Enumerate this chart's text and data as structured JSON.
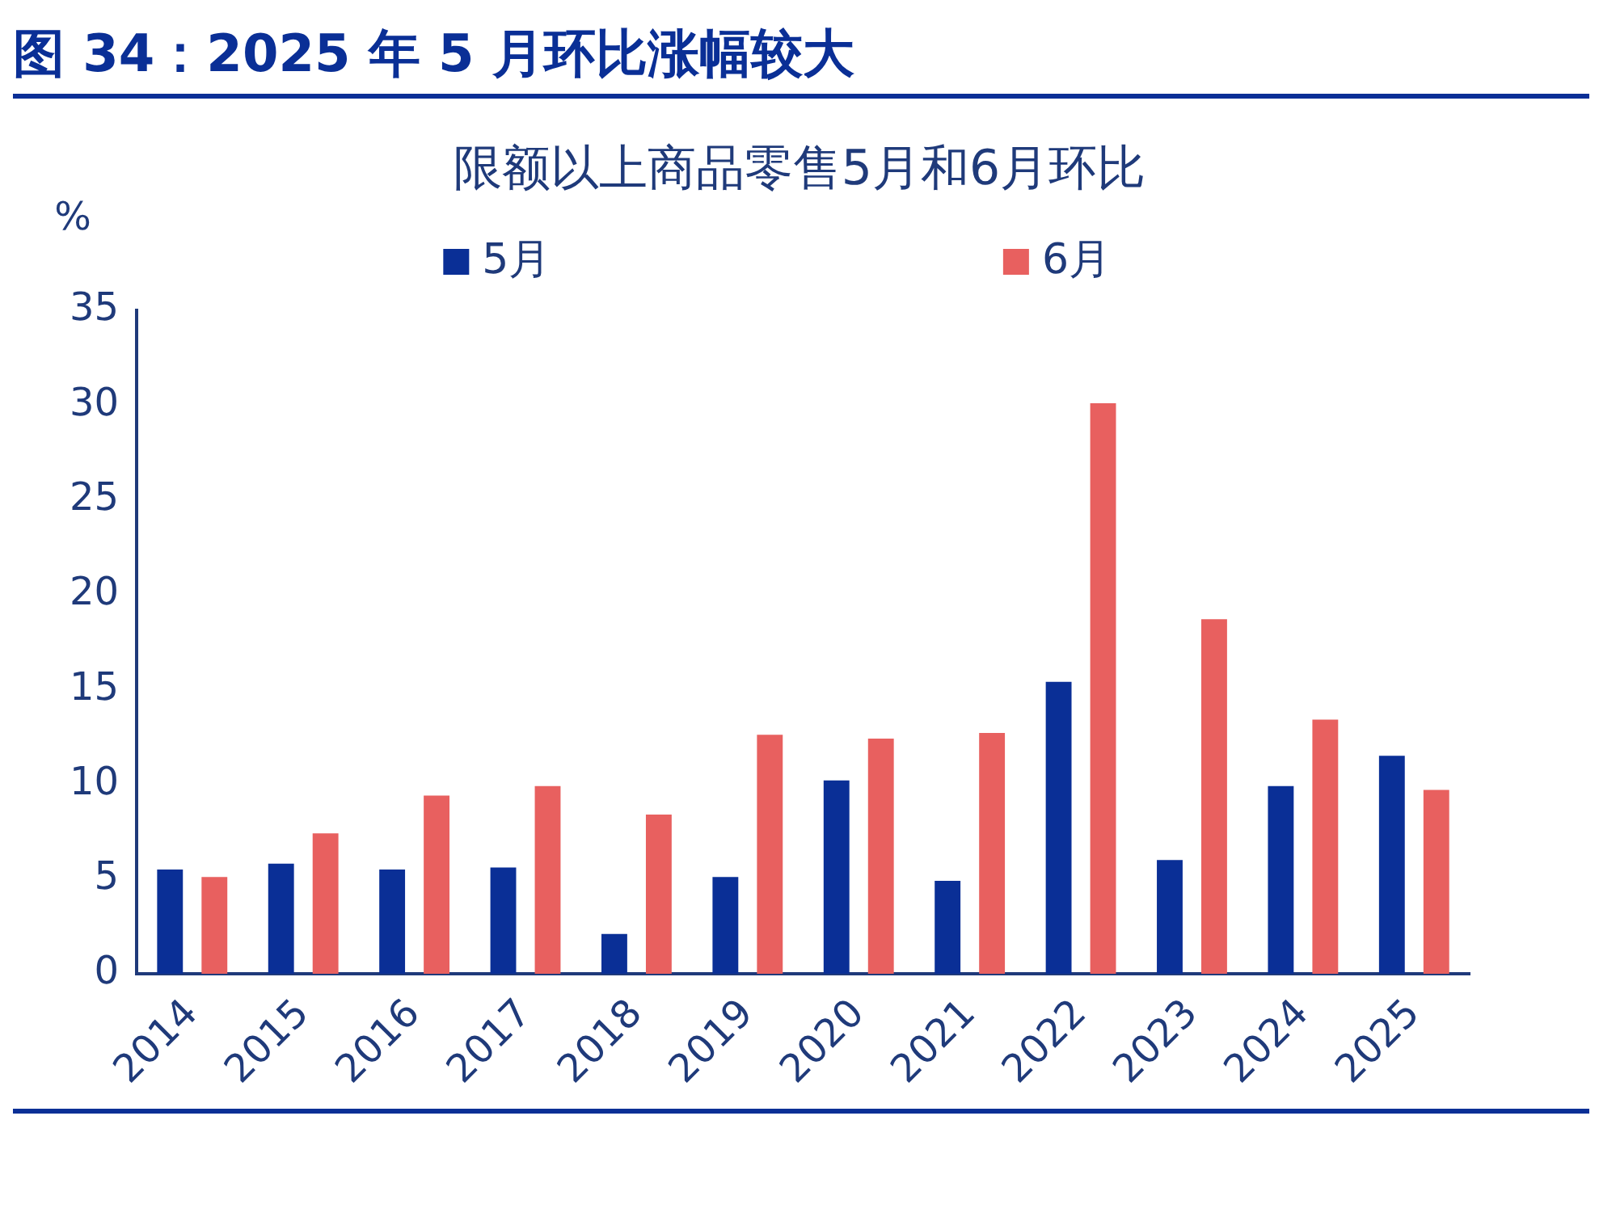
{
  "chart_data": {
    "type": "bar",
    "title": "图 34：2025 年 5 月环比涨幅较大",
    "subtitle": "限额以上商品零售5月和6月环比",
    "ylabel": "%",
    "categories": [
      "2014",
      "2015",
      "2016",
      "2017",
      "2018",
      "2019",
      "2020",
      "2021",
      "2022",
      "2023",
      "2024",
      "2025"
    ],
    "series": [
      {
        "name": "5月",
        "color": "#0a2f96",
        "values": [
          5.5,
          5.8,
          5.5,
          5.6,
          2.1,
          5.1,
          10.2,
          4.9,
          15.4,
          6.0,
          9.9,
          11.5
        ]
      },
      {
        "name": "6月",
        "color": "#e8605f",
        "values": [
          5.1,
          7.4,
          9.4,
          9.9,
          8.4,
          12.6,
          12.4,
          12.7,
          30.1,
          18.7,
          13.4,
          9.7
        ]
      }
    ],
    "ylim": [
      0,
      35
    ],
    "yticks": [
      0,
      5,
      10,
      15,
      20,
      25,
      30,
      35
    ],
    "grid": false,
    "legend": "top"
  }
}
